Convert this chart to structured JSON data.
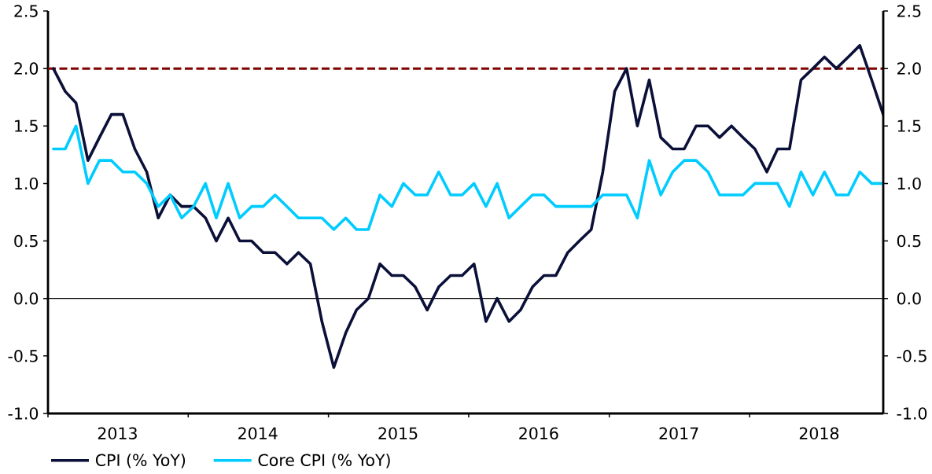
{
  "chart_data": {
    "type": "line",
    "x": [
      "2013-01-15",
      "2013-02-15",
      "2013-03-15",
      "2013-04-15",
      "2013-05-15",
      "2013-06-15",
      "2013-07-15",
      "2013-08-15",
      "2013-09-15",
      "2013-10-15",
      "2013-11-15",
      "2013-12-15",
      "2014-01-15",
      "2014-02-15",
      "2014-03-15",
      "2014-04-15",
      "2014-05-15",
      "2014-06-15",
      "2014-07-15",
      "2014-08-15",
      "2014-09-15",
      "2014-10-15",
      "2014-11-15",
      "2014-12-15",
      "2015-01-15",
      "2015-02-15",
      "2015-03-15",
      "2015-04-15",
      "2015-05-15",
      "2015-06-15",
      "2015-07-15",
      "2015-08-15",
      "2015-09-15",
      "2015-10-15",
      "2015-11-15",
      "2015-12-15",
      "2016-01-15",
      "2016-02-15",
      "2016-03-15",
      "2016-04-15",
      "2016-05-15",
      "2016-06-15",
      "2016-07-15",
      "2016-08-15",
      "2016-09-15",
      "2016-10-15",
      "2016-11-15",
      "2016-12-15",
      "2017-01-15",
      "2017-02-15",
      "2017-03-15",
      "2017-04-15",
      "2017-05-15",
      "2017-06-15",
      "2017-07-15",
      "2017-08-15",
      "2017-09-15",
      "2017-10-15",
      "2017-11-15",
      "2017-12-15",
      "2018-01-15",
      "2018-02-15",
      "2018-03-15",
      "2018-04-15",
      "2018-05-15",
      "2018-06-15",
      "2018-07-15",
      "2018-08-15",
      "2018-09-15",
      "2018-10-15",
      "2018-11-15",
      "2018-12-15"
    ],
    "series": [
      {
        "name": "CPI (% YoY)",
        "color": "#0b1039",
        "values": [
          2.0,
          1.8,
          1.7,
          1.2,
          1.4,
          1.6,
          1.6,
          1.3,
          1.1,
          0.7,
          0.9,
          0.8,
          0.8,
          0.7,
          0.5,
          0.7,
          0.5,
          0.5,
          0.4,
          0.4,
          0.3,
          0.4,
          0.3,
          -0.2,
          -0.6,
          -0.3,
          -0.1,
          0.0,
          0.3,
          0.2,
          0.2,
          0.1,
          -0.1,
          0.1,
          0.2,
          0.2,
          0.3,
          -0.2,
          0.0,
          -0.2,
          -0.1,
          0.1,
          0.2,
          0.2,
          0.4,
          0.5,
          0.6,
          1.1,
          1.8,
          2.0,
          1.5,
          1.9,
          1.4,
          1.3,
          1.3,
          1.5,
          1.5,
          1.4,
          1.5,
          1.4,
          1.3,
          1.1,
          1.3,
          1.3,
          1.9,
          2.0,
          2.1,
          2.0,
          2.1,
          2.2,
          1.9,
          1.6
        ]
      },
      {
        "name": "Core CPI (% YoY)",
        "color": "#00ccff",
        "values": [
          1.3,
          1.3,
          1.5,
          1.0,
          1.2,
          1.2,
          1.1,
          1.1,
          1.0,
          0.8,
          0.9,
          0.7,
          0.8,
          1.0,
          0.7,
          1.0,
          0.7,
          0.8,
          0.8,
          0.9,
          0.8,
          0.7,
          0.7,
          0.7,
          0.6,
          0.7,
          0.6,
          0.6,
          0.9,
          0.8,
          1.0,
          0.9,
          0.9,
          1.1,
          0.9,
          0.9,
          1.0,
          0.8,
          1.0,
          0.7,
          0.8,
          0.9,
          0.9,
          0.8,
          0.8,
          0.8,
          0.8,
          0.9,
          0.9,
          0.9,
          0.7,
          1.2,
          0.9,
          1.1,
          1.2,
          1.2,
          1.1,
          0.9,
          0.9,
          0.9,
          1.0,
          1.0,
          1.0,
          0.8,
          1.1,
          0.9,
          1.1,
          0.9,
          0.9,
          1.1,
          1.0,
          1.0
        ]
      }
    ],
    "xlim": [
      "2013-01-01",
      "2018-12-15"
    ],
    "xticks": [
      {
        "value": "2013-01-01",
        "label": null
      },
      {
        "value": "2013-07-01",
        "label": "2013"
      },
      {
        "value": "2014-01-01",
        "label": null
      },
      {
        "value": "2014-07-01",
        "label": "2014"
      },
      {
        "value": "2015-01-01",
        "label": null
      },
      {
        "value": "2015-07-01",
        "label": "2015"
      },
      {
        "value": "2016-01-01",
        "label": null
      },
      {
        "value": "2016-07-01",
        "label": "2016"
      },
      {
        "value": "2017-01-01",
        "label": null
      },
      {
        "value": "2017-07-01",
        "label": "2017"
      },
      {
        "value": "2018-01-01",
        "label": null
      },
      {
        "value": "2018-07-01",
        "label": "2018"
      }
    ],
    "ylim": [
      -1,
      2.5
    ],
    "yticks": [
      {
        "value": -1,
        "label": "-1.0"
      },
      -0.5,
      {
        "value": 0,
        "label": "0.0"
      },
      0.5,
      {
        "value": 1,
        "label": "1.0"
      },
      1.5,
      {
        "value": 2,
        "label": "2.0"
      },
      2.5
    ],
    "y2lim": [
      -1,
      2.5
    ],
    "y2ticks": [
      {
        "value": -1,
        "label": "-1.0"
      },
      -0.5,
      {
        "value": 0,
        "label": "0.0"
      },
      0.5,
      {
        "value": 1,
        "label": "1.0"
      },
      1.5,
      {
        "value": 2,
        "label": "2.0"
      },
      2.5
    ],
    "ref_lines": [
      {
        "axis": "y",
        "value": 2,
        "color": "#800000",
        "line_style": "dashed"
      },
      {
        "axis": "y",
        "value": 0,
        "color": "#000000",
        "line_style": "solid"
      }
    ],
    "legend": "bottom left"
  }
}
